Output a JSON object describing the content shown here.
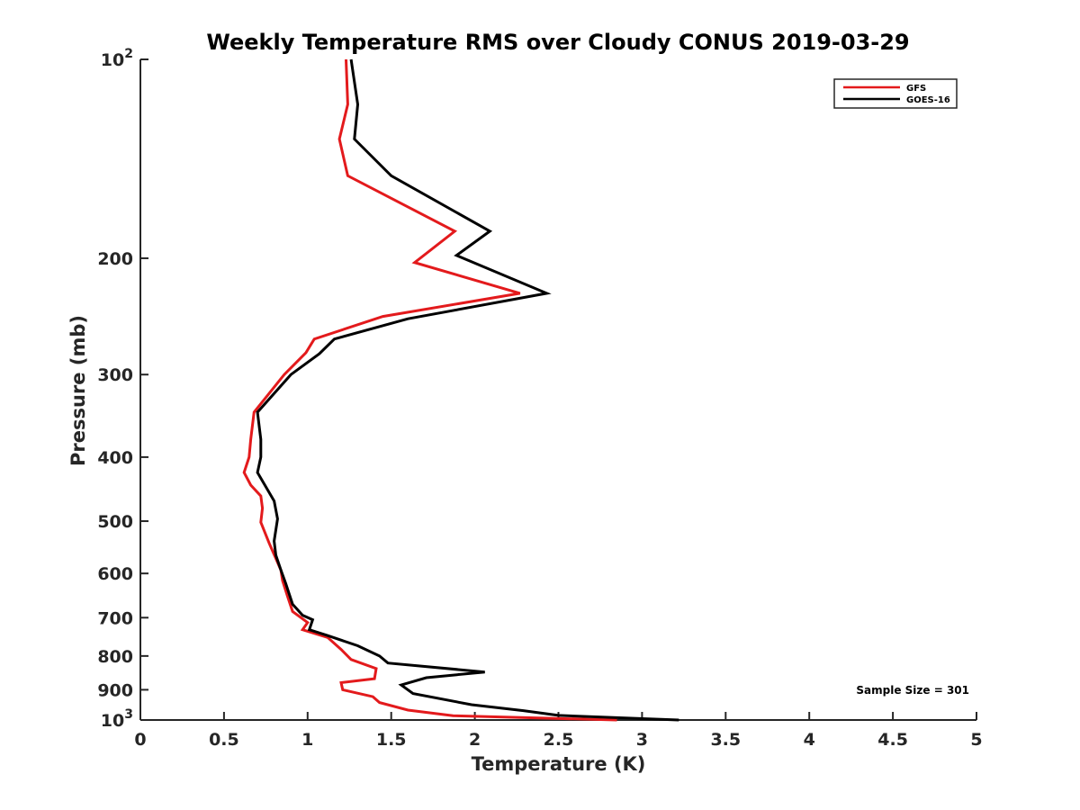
{
  "chart_data": {
    "type": "line",
    "title": "Weekly Temperature RMS over Cloudy CONUS 2019-03-29",
    "xlabel": "Temperature (K)",
    "ylabel": "Pressure (mb)",
    "xlim": [
      0,
      5
    ],
    "ylim": [
      100,
      1000
    ],
    "y_scale": "log",
    "y_reversed": true,
    "grid": false,
    "legend_position": "top-right",
    "x_ticks": [
      "0",
      "0.5",
      "1",
      "1.5",
      "2",
      "2.5",
      "3",
      "3.5",
      "4",
      "4.5",
      "5"
    ],
    "x_tick_values": [
      0,
      0.5,
      1,
      1.5,
      2,
      2.5,
      3,
      3.5,
      4,
      4.5,
      5
    ],
    "y_ticks": [
      {
        "value": 100,
        "base": "10",
        "exp": "2"
      },
      {
        "value": 200,
        "label": "200"
      },
      {
        "value": 300,
        "label": "300"
      },
      {
        "value": 400,
        "label": "400"
      },
      {
        "value": 500,
        "label": "500"
      },
      {
        "value": 600,
        "label": "600"
      },
      {
        "value": 700,
        "label": "700"
      },
      {
        "value": 800,
        "label": "800"
      },
      {
        "value": 900,
        "label": "900"
      },
      {
        "value": 1000,
        "base": "10",
        "exp": "3"
      }
    ],
    "annotation": "Sample Size = 301",
    "series": [
      {
        "name": "GFS",
        "color": "#e31a1c",
        "points": [
          [
            1.23,
            100
          ],
          [
            1.24,
            117
          ],
          [
            1.19,
            132
          ],
          [
            1.24,
            150
          ],
          [
            1.88,
            182
          ],
          [
            1.64,
            203
          ],
          [
            2.27,
            226
          ],
          [
            1.45,
            245
          ],
          [
            1.04,
            265
          ],
          [
            0.99,
            278
          ],
          [
            0.86,
            300
          ],
          [
            0.68,
            342
          ],
          [
            0.66,
            376
          ],
          [
            0.65,
            400
          ],
          [
            0.62,
            422
          ],
          [
            0.66,
            441
          ],
          [
            0.72,
            458
          ],
          [
            0.73,
            478
          ],
          [
            0.72,
            502
          ],
          [
            0.77,
            540
          ],
          [
            0.84,
            593
          ],
          [
            0.85,
            615
          ],
          [
            0.88,
            650
          ],
          [
            0.91,
            685
          ],
          [
            1.0,
            712
          ],
          [
            0.97,
            730
          ],
          [
            1.12,
            750
          ],
          [
            1.2,
            782
          ],
          [
            1.26,
            810
          ],
          [
            1.41,
            836
          ],
          [
            1.4,
            866
          ],
          [
            1.2,
            878
          ],
          [
            1.21,
            900
          ],
          [
            1.39,
            922
          ],
          [
            1.43,
            941
          ],
          [
            1.6,
            966
          ],
          [
            1.87,
            985
          ],
          [
            2.85,
            1000
          ]
        ]
      },
      {
        "name": "GOES-16",
        "color": "#000000",
        "points": [
          [
            1.26,
            100
          ],
          [
            1.3,
            117
          ],
          [
            1.28,
            132
          ],
          [
            1.5,
            150
          ],
          [
            2.09,
            182
          ],
          [
            1.89,
            198
          ],
          [
            2.43,
            226
          ],
          [
            1.6,
            247
          ],
          [
            1.16,
            265
          ],
          [
            1.07,
            279
          ],
          [
            0.9,
            300
          ],
          [
            0.7,
            342
          ],
          [
            0.72,
            376
          ],
          [
            0.72,
            400
          ],
          [
            0.7,
            422
          ],
          [
            0.8,
            466
          ],
          [
            0.82,
            496
          ],
          [
            0.8,
            536
          ],
          [
            0.81,
            563
          ],
          [
            0.84,
            593
          ],
          [
            0.87,
            622
          ],
          [
            0.91,
            668
          ],
          [
            0.97,
            694
          ],
          [
            1.03,
            705
          ],
          [
            1.01,
            730
          ],
          [
            1.12,
            745
          ],
          [
            1.3,
            772
          ],
          [
            1.43,
            800
          ],
          [
            1.48,
            820
          ],
          [
            2.06,
            846
          ],
          [
            1.71,
            863
          ],
          [
            1.56,
            885
          ],
          [
            1.63,
            912
          ],
          [
            1.98,
            948
          ],
          [
            2.29,
            968
          ],
          [
            2.5,
            984
          ],
          [
            3.22,
            1000
          ]
        ]
      }
    ]
  }
}
